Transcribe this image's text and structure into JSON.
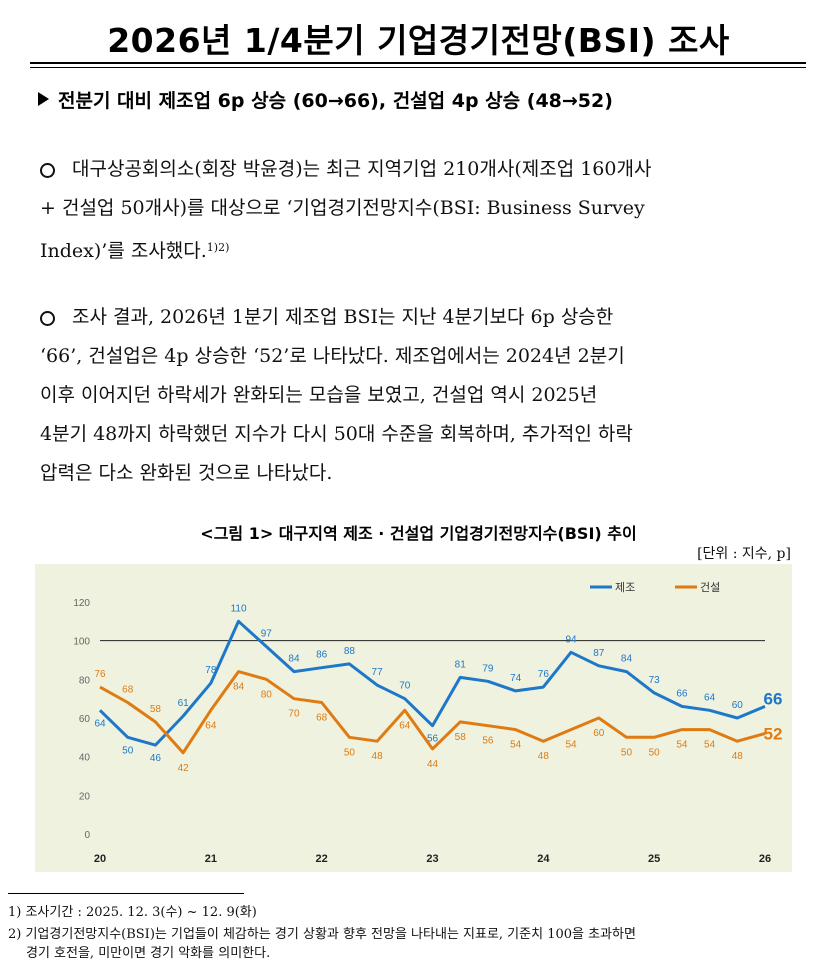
{
  "header": {
    "title": "2026년 1/4분기 기업경기전망(BSI) 조사",
    "subtitle": "전분기 대비 제조업 6p 상승 (60→66), 건설업 4p 상승 (48→52)"
  },
  "paragraphs": {
    "p1": [
      "대구상공회의소(회장 박윤경)는 최근 지역기업 210개사(제조업 160개사",
      "+ 건설업 50개사)를 대상으로 ‘기업경기전망지수(BSI: Business Survey",
      "Index)’를 조사했다."
    ],
    "p1_footnote_ref": "1)2)",
    "p2": [
      "조사 결과, 2026년 1분기 제조업 BSI는 지난 4분기보다 6p 상승한",
      "‘66’, 건설업은 4p 상승한 ‘52’로 나타났다. 제조업에서는 2024년 2분기",
      "이후 이어지던 하락세가 완화되는 모습을 보였고, 건설업 역시 2025년",
      "4분기 48까지 하락했던 지수가 다시 50대 수준을 회복하며, 추가적인 하락",
      "압력은 다소 완화된 것으로 나타났다."
    ]
  },
  "figure": {
    "caption": "<그림 1> 대구지역 제조 · 건설업 기업경기전망지수(BSI) 추이",
    "unit": "[단위 : 지수, p]"
  },
  "chart_data": {
    "type": "line",
    "x": [
      0,
      1,
      2,
      3,
      4,
      5,
      6,
      7,
      8,
      9,
      10,
      11,
      12,
      13,
      14,
      15,
      16,
      17,
      18,
      19,
      20,
      21,
      22,
      23,
      24
    ],
    "xticks": [
      "20",
      "21",
      "22",
      "23",
      "24",
      "25",
      "26"
    ],
    "xtick_positions": [
      0,
      4,
      8,
      12,
      16,
      20,
      24
    ],
    "ylim": [
      0,
      120
    ],
    "yticks": [
      0,
      20,
      40,
      60,
      80,
      100,
      120
    ],
    "reference_line": 100,
    "legend_position": "top-right",
    "series": [
      {
        "name": "제조",
        "color": "#1f77c9",
        "values": [
          64,
          50,
          46,
          61,
          78,
          110,
          97,
          84,
          86,
          88,
          77,
          70,
          56,
          81,
          79,
          74,
          76,
          94,
          87,
          84,
          73,
          66,
          64,
          60,
          66
        ],
        "labels": [
          "64",
          "50",
          "46",
          "61",
          "78",
          "110",
          "97",
          "84",
          "86",
          "88",
          "77",
          "70",
          "56",
          "81",
          "79",
          "74",
          "76",
          "94",
          "87",
          "84",
          "73",
          "66",
          "64",
          "60",
          "66"
        ]
      },
      {
        "name": "건설",
        "color": "#e07b12",
        "values": [
          76,
          68,
          58,
          42,
          64,
          84,
          80,
          70,
          68,
          50,
          48,
          64,
          44,
          58,
          56,
          54,
          48,
          54,
          60,
          50,
          50,
          54,
          54,
          48,
          52
        ],
        "labels": [
          "76",
          "68",
          "58",
          "42",
          "64",
          "84",
          "80",
          "70",
          "68",
          "50",
          "48",
          "64",
          "44",
          "58",
          "56",
          "54",
          "48",
          "54",
          "60",
          "50",
          "50",
          "54",
          "54",
          "48",
          "52"
        ]
      }
    ]
  },
  "footnotes": {
    "f1": "1) 조사기간 : 2025. 12. 3(수) ~ 12. 9(화)",
    "f2a": "2) 기업경기전망지수(BSI)는 기업들이 체감하는 경기 상황과 향후 전망을 나타내는 지표로, 기준치 100을 초과하면",
    "f2b": "경기 호전을, 미만이면 경기 악화를 의미한다."
  }
}
